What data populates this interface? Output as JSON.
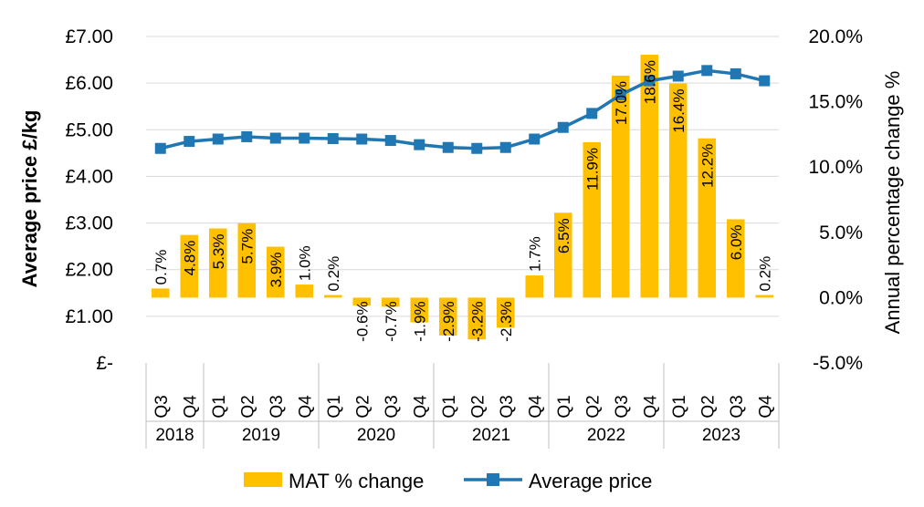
{
  "chart_data": {
    "type": "bar+line",
    "categories": [
      "Q3",
      "Q4",
      "Q1",
      "Q2",
      "Q3",
      "Q4",
      "Q1",
      "Q2",
      "Q3",
      "Q4",
      "Q1",
      "Q2",
      "Q3",
      "Q4",
      "Q1",
      "Q2",
      "Q3",
      "Q4",
      "Q1",
      "Q2",
      "Q3",
      "Q4"
    ],
    "years": [
      {
        "label": "2018",
        "count": 2
      },
      {
        "label": "2019",
        "count": 4
      },
      {
        "label": "2020",
        "count": 4
      },
      {
        "label": "2021",
        "count": 4
      },
      {
        "label": "2022",
        "count": 4
      },
      {
        "label": "2023",
        "count": 4
      }
    ],
    "series": [
      {
        "name": "MAT % change",
        "type": "bar",
        "axis": "right",
        "color": "#ffc000",
        "values": [
          0.7,
          4.8,
          5.3,
          5.7,
          3.9,
          1.0,
          0.2,
          -0.6,
          -0.7,
          -1.9,
          -2.9,
          -3.2,
          -2.3,
          1.7,
          6.5,
          11.9,
          17.0,
          18.6,
          16.4,
          12.2,
          6.0,
          0.2
        ],
        "labels": [
          "0.7%",
          "4.8%",
          "5.3%",
          "5.7%",
          "3.9%",
          "1.0%",
          "0.2%",
          "-0.6%",
          "-0.7%",
          "-1.9%",
          "-2.9%",
          "-3.2%",
          "-2.3%",
          "1.7%",
          "6.5%",
          "11.9%",
          "17.0%",
          "18.6%",
          "16.4%",
          "12.2%",
          "6.0%",
          "0.2%"
        ]
      },
      {
        "name": "Average price",
        "type": "line",
        "axis": "left",
        "color": "#1f77b4",
        "values": [
          4.6,
          4.75,
          4.8,
          4.85,
          4.82,
          4.82,
          4.81,
          4.8,
          4.77,
          4.68,
          4.62,
          4.6,
          4.62,
          4.8,
          5.05,
          5.35,
          5.75,
          6.05,
          6.15,
          6.27,
          6.2,
          6.05
        ]
      }
    ],
    "ylabel": "Average price £/kg",
    "y2label": "Annual percentage change %",
    "ylim": [
      0,
      7
    ],
    "y2lim": [
      -5,
      20
    ],
    "yticks": [
      "£-",
      "£1.00",
      "£2.00",
      "£3.00",
      "£4.00",
      "£5.00",
      "£6.00",
      "£7.00"
    ],
    "y2ticks": [
      "-5.0%",
      "0.0%",
      "5.0%",
      "10.0%",
      "15.0%",
      "20.0%"
    ],
    "grid": true,
    "legend": "bottom"
  }
}
